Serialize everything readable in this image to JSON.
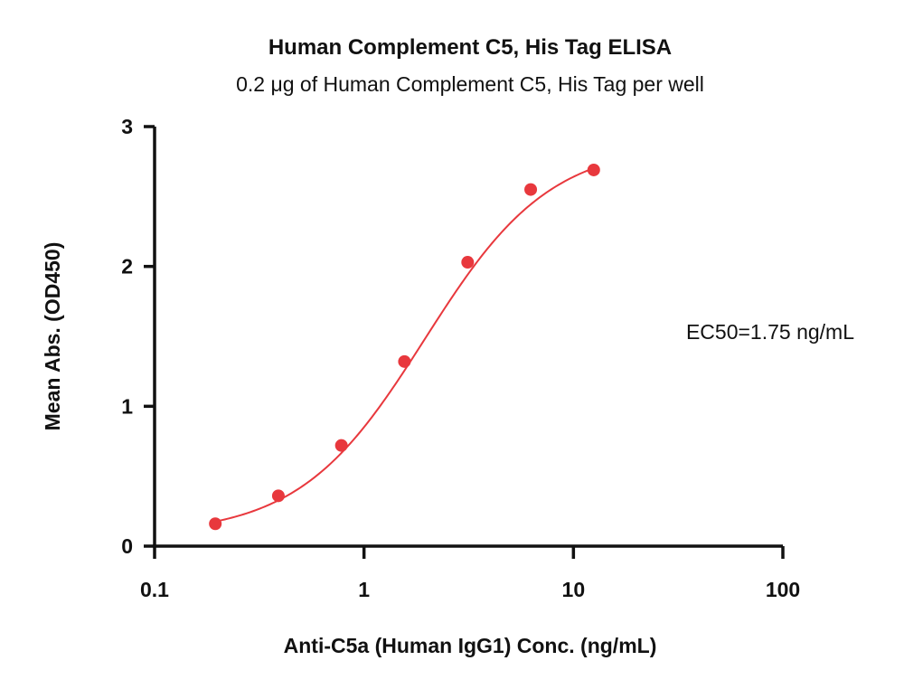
{
  "chart_data": {
    "type": "scatter",
    "title": "Human Complement C5, His Tag ELISA",
    "subtitle": "0.2 μg of Human Complement C5, His Tag per well",
    "xlabel": "Anti-C5a (Human IgG1) Conc. (ng/mL)",
    "ylabel": "Mean Abs. (OD450)",
    "xscale": "log",
    "xlim": [
      0.1,
      100
    ],
    "ylim": [
      0,
      3
    ],
    "xticks": [
      0.1,
      1,
      10,
      100
    ],
    "xtick_labels": [
      "0.1",
      "1",
      "10",
      "100"
    ],
    "yticks": [
      0,
      1,
      2,
      3
    ],
    "ytick_labels": [
      "0",
      "1",
      "2",
      "3"
    ],
    "grid": false,
    "color": "#e8383d",
    "fit": "four-parameter logistic curve",
    "series": [
      {
        "x": [
          0.195,
          0.39,
          0.78,
          1.56,
          3.125,
          6.25,
          12.5
        ],
        "y": [
          0.16,
          0.36,
          0.72,
          1.32,
          2.03,
          2.55,
          2.69
        ]
      }
    ],
    "annotations": [
      "EC50=1.75 ng/mL"
    ]
  }
}
